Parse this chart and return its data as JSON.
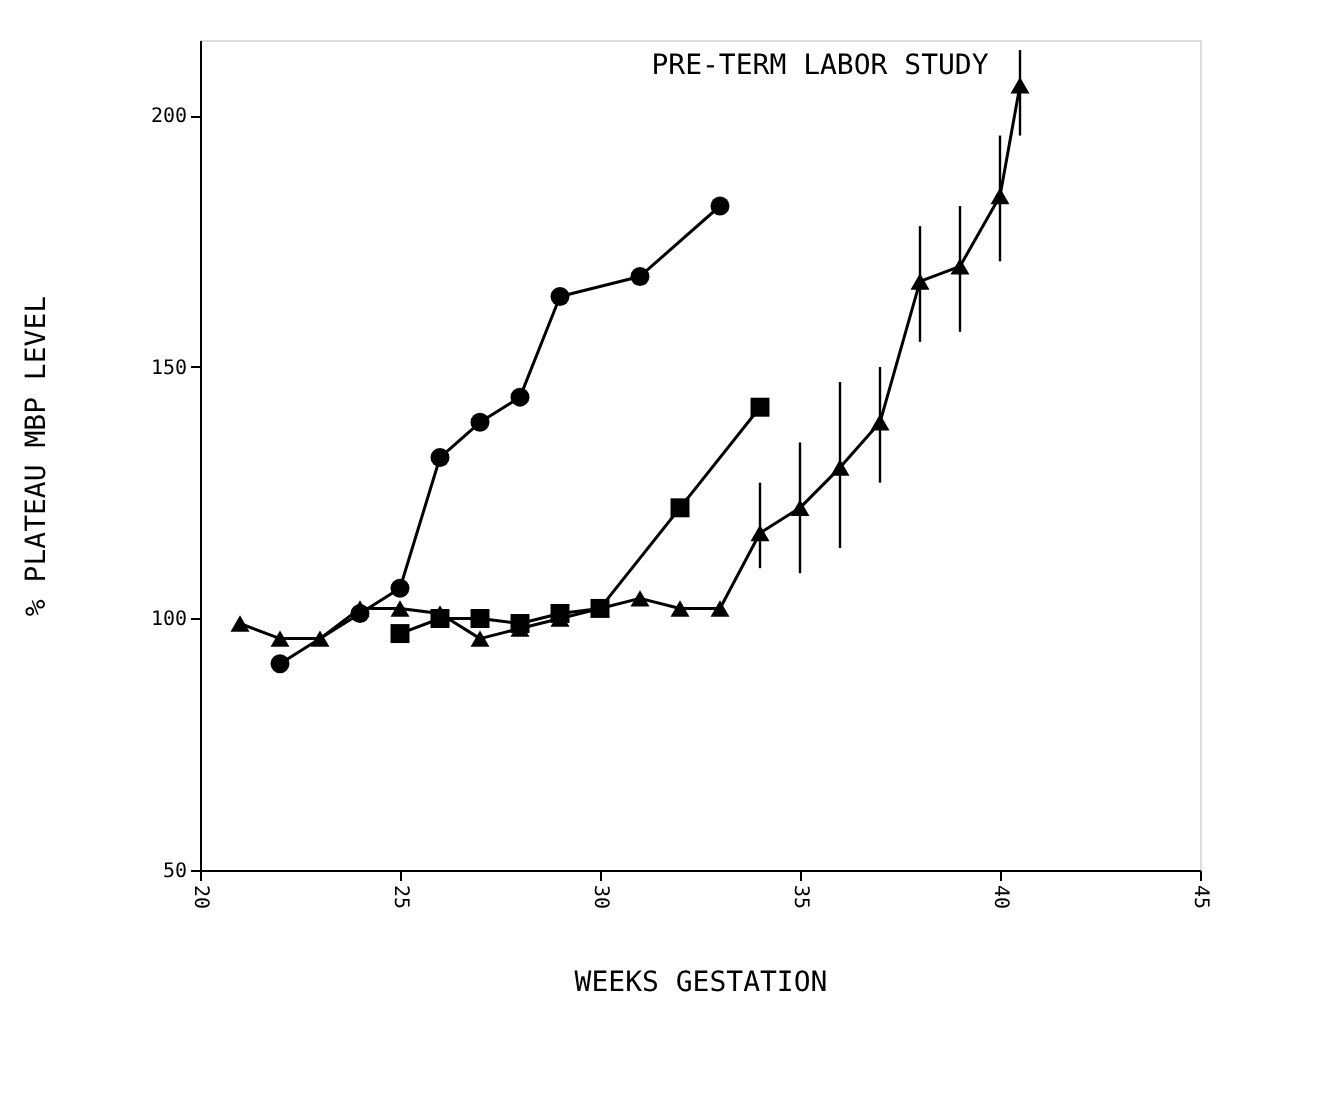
{
  "chart_data": {
    "type": "line",
    "title": "PRE-TERM LABOR STUDY",
    "xlabel": "WEEKS GESTATION",
    "ylabel": "% PLATEAU MBP LEVEL",
    "xlim": [
      20,
      45
    ],
    "xticks": [
      20,
      25,
      30,
      35,
      40,
      45
    ],
    "ylim": [
      50,
      215
    ],
    "yticks": [
      50,
      100,
      150,
      200
    ],
    "grid": false,
    "line_style": "solid",
    "series": [
      {
        "color": "#000000",
        "marker": "circle",
        "x": [
          22,
          24,
          25,
          26,
          27,
          28,
          29,
          31,
          33
        ],
        "values": [
          91,
          101,
          106,
          132,
          139,
          144,
          164,
          168,
          182
        ]
      },
      {
        "color": "#000000",
        "marker": "square",
        "x": [
          25,
          26,
          27,
          28,
          29,
          30,
          32,
          34
        ],
        "values": [
          97,
          100,
          100,
          99,
          101,
          102,
          122,
          142
        ]
      },
      {
        "color": "#000000",
        "marker": "triangle",
        "x": [
          21,
          22,
          23,
          24,
          25,
          26,
          27,
          28,
          29,
          30,
          31,
          32,
          33,
          34,
          35,
          36,
          37,
          38,
          39,
          40,
          40.5
        ],
        "values": [
          99,
          96,
          96,
          102,
          102,
          101,
          96,
          98,
          100,
          102,
          104,
          102,
          102,
          117,
          122,
          130,
          139,
          167,
          170,
          184,
          206
        ],
        "errors": [
          null,
          null,
          null,
          null,
          null,
          null,
          null,
          null,
          null,
          null,
          null,
          null,
          null,
          [
            110,
            127
          ],
          [
            109,
            135
          ],
          [
            114,
            147
          ],
          [
            127,
            150
          ],
          [
            155,
            178
          ],
          [
            157,
            182
          ],
          [
            171,
            196
          ],
          [
            196,
            213
          ]
        ]
      }
    ]
  }
}
